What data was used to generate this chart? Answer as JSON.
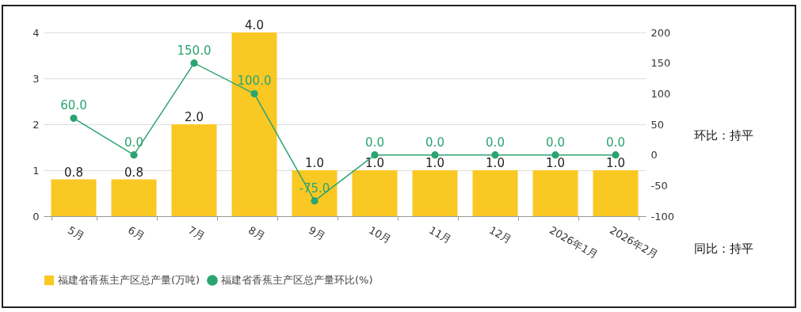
{
  "chart_data": {
    "type": "bar",
    "categories": [
      "5月",
      "6月",
      "7月",
      "8月",
      "9月",
      "10月",
      "11月",
      "12月",
      "2026年1月",
      "2026年2月"
    ],
    "series": [
      {
        "name": "福建省香蕉主产区总产量(万吨)",
        "color": "#fac823",
        "values": [
          0.8,
          0.8,
          2.0,
          4.0,
          1.0,
          1.0,
          1.0,
          1.0,
          1.0,
          1.0
        ],
        "value_labels": [
          "0.8",
          "0.8",
          "2.0",
          "4.0",
          "1.0",
          "1.0",
          "1.0",
          "1.0",
          "1.0",
          "1.0"
        ]
      },
      {
        "name": "福建省香蕉主产区总产量环比(%)",
        "type": "line",
        "axis": "y2",
        "color": "#2ba471",
        "values": [
          60.0,
          0.0,
          150.0,
          100.0,
          -75.0,
          0.0,
          0.0,
          0.0,
          0.0,
          0.0
        ],
        "value_labels": [
          "60.0",
          "0.0",
          "150.0",
          "100.0",
          "-75.0",
          "0.0",
          "0.0",
          "0.0",
          "0.0",
          "0.0"
        ]
      }
    ],
    "ylim": [
      0,
      4
    ],
    "yticks": [
      0,
      1,
      2,
      3,
      4
    ],
    "y2lim": [
      -100,
      200
    ],
    "y2ticks": [
      -100,
      -50,
      0,
      50,
      100,
      150,
      200
    ],
    "grid": "y",
    "legend": "bottom",
    "marker": "circle",
    "line_style": "solid",
    "annotations": [
      "环比：持平",
      "同比：持平"
    ]
  }
}
